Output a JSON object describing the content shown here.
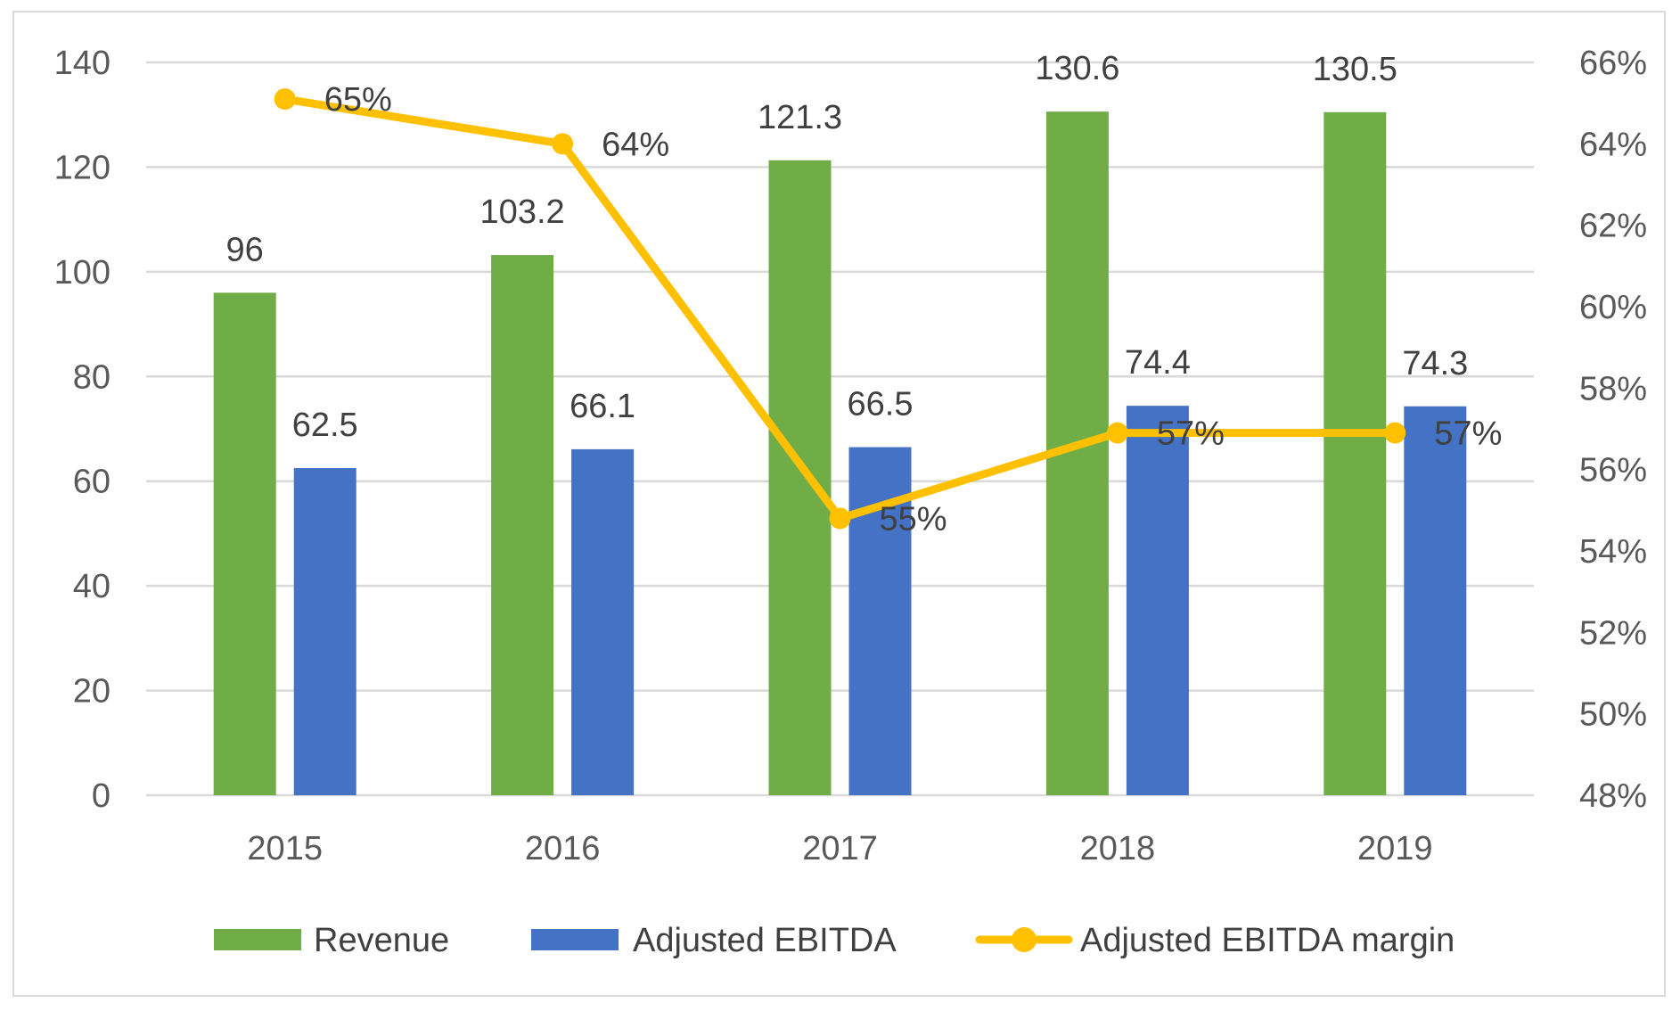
{
  "chart_data": {
    "type": "bar",
    "categories": [
      "2015",
      "2016",
      "2017",
      "2018",
      "2019"
    ],
    "series": [
      {
        "name": "Revenue",
        "type": "bar",
        "axis": "left",
        "color": "#70ad47",
        "values": [
          96,
          103.2,
          121.3,
          130.6,
          130.5
        ],
        "labels": [
          "96",
          "103.2",
          "121.3",
          "130.6",
          "130.5"
        ]
      },
      {
        "name": "Adjusted EBITDA",
        "type": "bar",
        "axis": "left",
        "color": "#4472c4",
        "values": [
          62.5,
          66.1,
          66.5,
          74.4,
          74.3
        ],
        "labels": [
          "62.5",
          "66.1",
          "66.5",
          "74.4",
          "74.3"
        ]
      },
      {
        "name": "Adjusted EBITDA margin",
        "type": "line",
        "axis": "right",
        "color": "#ffc000",
        "values": [
          65.1,
          64.0,
          54.8,
          56.9,
          56.9
        ],
        "labels": [
          "65%",
          "64%",
          "55%",
          "57%",
          "57%"
        ]
      }
    ],
    "y_left": {
      "min": 0,
      "max": 140,
      "ticks": [
        "0",
        "20",
        "40",
        "60",
        "80",
        "100",
        "120",
        "140"
      ]
    },
    "y_right": {
      "min": 48,
      "max": 66,
      "ticks": [
        "48%",
        "50%",
        "52%",
        "54%",
        "56%",
        "58%",
        "60%",
        "62%",
        "64%",
        "66%"
      ]
    },
    "grid": true,
    "legend_position": "bottom",
    "title": "",
    "xlabel": "",
    "ylabel": ""
  }
}
